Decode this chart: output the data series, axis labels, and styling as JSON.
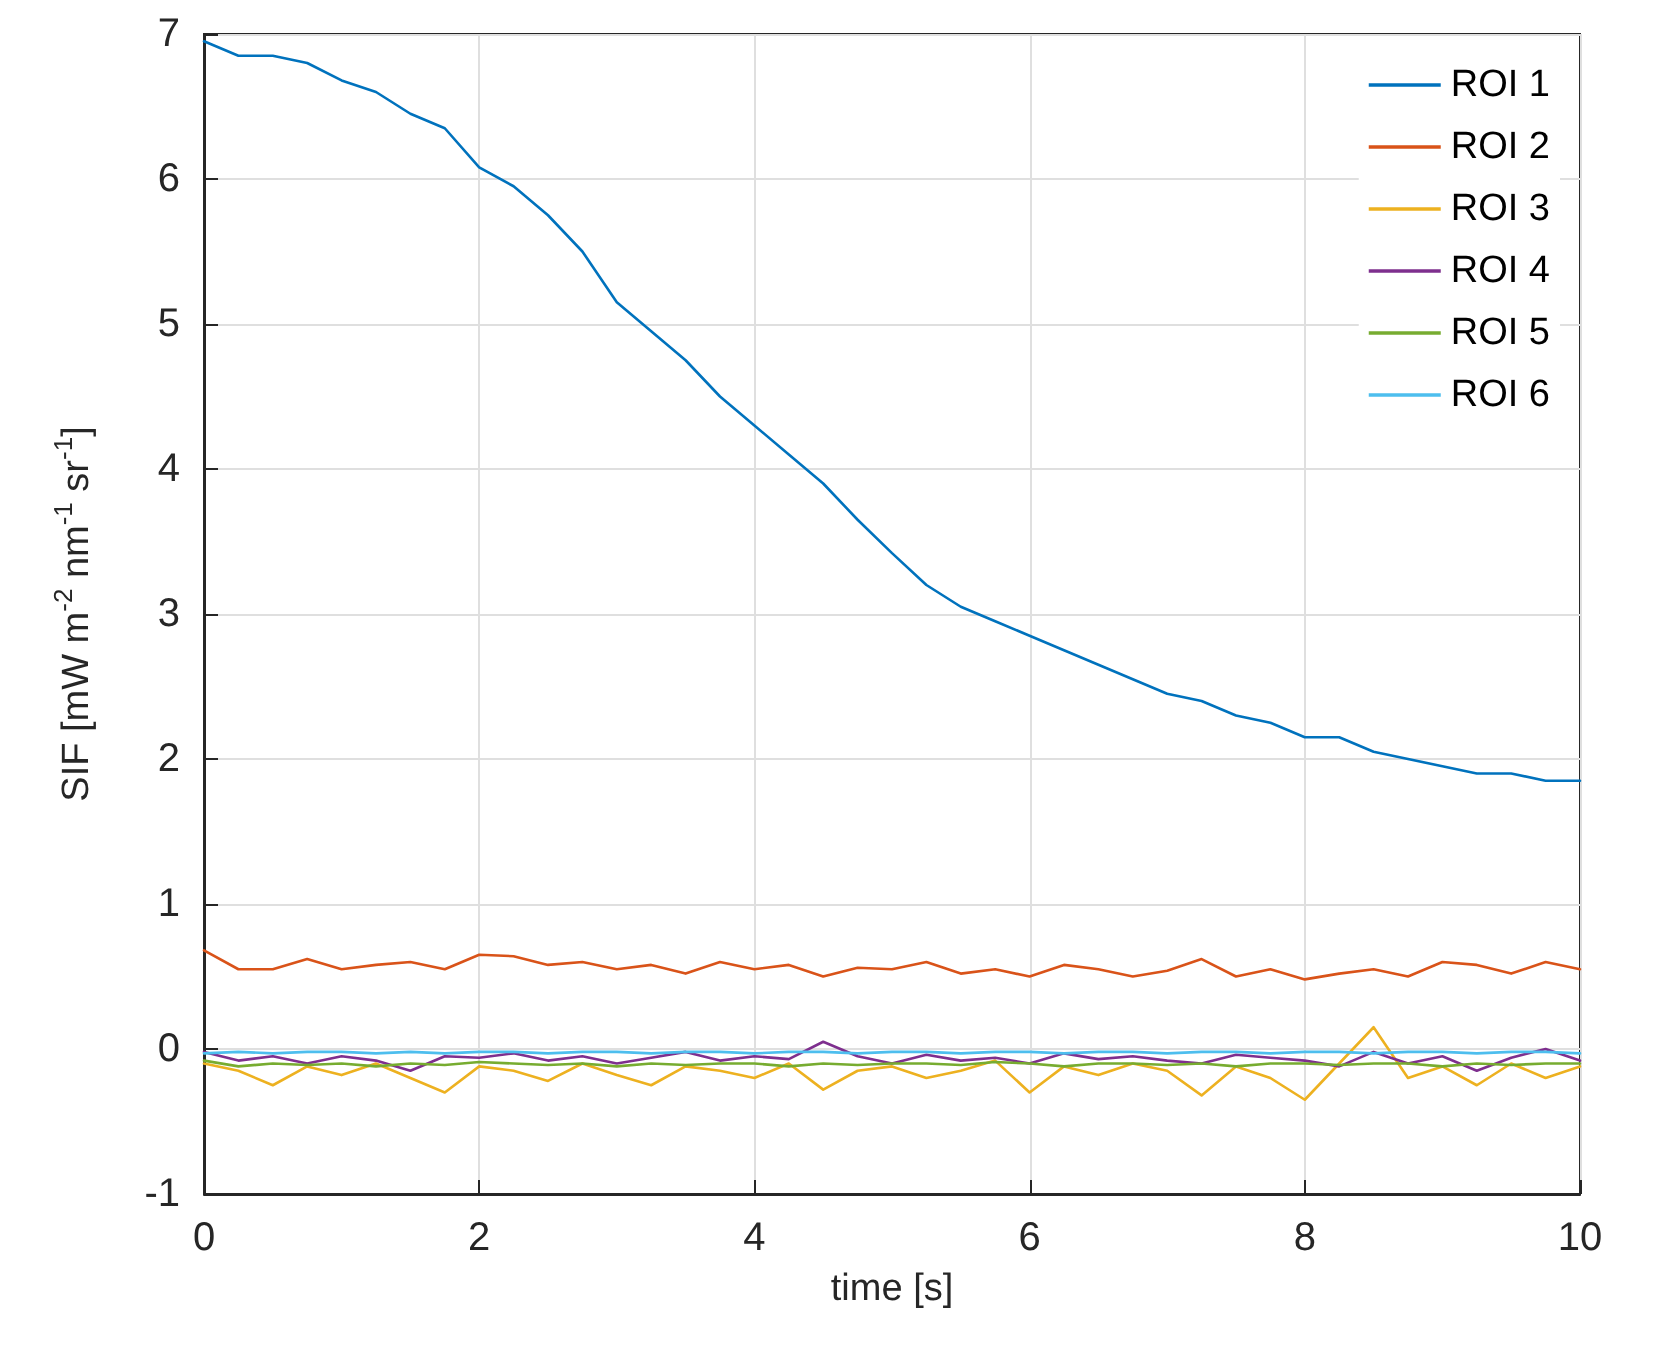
{
  "chart_data": {
    "type": "line",
    "xlabel": "time [s]",
    "ylabel": "SIF [mW m$^{-2}$ nm$^{-1}$ sr$^{-1}$]",
    "x": [
      0,
      0.25,
      0.5,
      0.75,
      1,
      1.25,
      1.5,
      1.75,
      2,
      2.25,
      2.5,
      2.75,
      3,
      3.25,
      3.5,
      3.75,
      4,
      4.25,
      4.5,
      4.75,
      5,
      5.25,
      5.5,
      5.75,
      6,
      6.25,
      6.5,
      6.75,
      7,
      7.25,
      7.5,
      7.75,
      8,
      8.25,
      8.5,
      8.75,
      9,
      9.25,
      9.5,
      9.75,
      10
    ],
    "xlim": [
      0,
      10
    ],
    "xticks": [
      0,
      2,
      4,
      6,
      8,
      10
    ],
    "ylim": [
      -1,
      7
    ],
    "yticks": [
      -1,
      0,
      1,
      2,
      3,
      4,
      5,
      6,
      7
    ],
    "grid": true,
    "legend": "top right",
    "line_style": "solid",
    "marker": "none",
    "series": [
      {
        "name": "ROI 1",
        "color": "#0072bd",
        "values": [
          6.95,
          6.85,
          6.85,
          6.8,
          6.68,
          6.6,
          6.45,
          6.35,
          6.08,
          5.95,
          5.75,
          5.5,
          5.15,
          4.95,
          4.75,
          4.5,
          4.3,
          4.1,
          3.9,
          3.65,
          3.42,
          3.2,
          3.05,
          2.95,
          2.85,
          2.75,
          2.65,
          2.55,
          2.45,
          2.4,
          2.3,
          2.25,
          2.15,
          2.15,
          2.05,
          2.0,
          1.95,
          1.9,
          1.9,
          1.85,
          1.85
        ]
      },
      {
        "name": "ROI 2",
        "color": "#d95319",
        "values": [
          0.68,
          0.55,
          0.55,
          0.62,
          0.55,
          0.58,
          0.6,
          0.55,
          0.65,
          0.64,
          0.58,
          0.6,
          0.55,
          0.58,
          0.52,
          0.6,
          0.55,
          0.58,
          0.5,
          0.56,
          0.55,
          0.6,
          0.52,
          0.55,
          0.5,
          0.58,
          0.55,
          0.5,
          0.54,
          0.62,
          0.5,
          0.55,
          0.48,
          0.52,
          0.55,
          0.5,
          0.6,
          0.58,
          0.52,
          0.6,
          0.55
        ]
      },
      {
        "name": "ROI 3",
        "color": "#edb120",
        "values": [
          -0.1,
          -0.15,
          -0.25,
          -0.12,
          -0.18,
          -0.1,
          -0.2,
          -0.3,
          -0.12,
          -0.15,
          -0.22,
          -0.1,
          -0.18,
          -0.25,
          -0.12,
          -0.15,
          -0.2,
          -0.1,
          -0.28,
          -0.15,
          -0.12,
          -0.2,
          -0.15,
          -0.08,
          -0.3,
          -0.12,
          -0.18,
          -0.1,
          -0.15,
          -0.32,
          -0.12,
          -0.2,
          -0.35,
          -0.1,
          0.15,
          -0.2,
          -0.12,
          -0.25,
          -0.1,
          -0.2,
          -0.12
        ]
      },
      {
        "name": "ROI 4",
        "color": "#7e2f8e",
        "values": [
          -0.02,
          -0.08,
          -0.05,
          -0.1,
          -0.05,
          -0.08,
          -0.15,
          -0.05,
          -0.06,
          -0.03,
          -0.08,
          -0.05,
          -0.1,
          -0.06,
          -0.02,
          -0.08,
          -0.05,
          -0.07,
          0.05,
          -0.05,
          -0.1,
          -0.04,
          -0.08,
          -0.06,
          -0.1,
          -0.03,
          -0.07,
          -0.05,
          -0.08,
          -0.1,
          -0.04,
          -0.06,
          -0.08,
          -0.12,
          -0.02,
          -0.1,
          -0.05,
          -0.15,
          -0.06,
          0.0,
          -0.08
        ]
      },
      {
        "name": "ROI 5",
        "color": "#77ac30",
        "values": [
          -0.08,
          -0.12,
          -0.1,
          -0.11,
          -0.1,
          -0.12,
          -0.1,
          -0.11,
          -0.09,
          -0.1,
          -0.11,
          -0.1,
          -0.12,
          -0.1,
          -0.11,
          -0.1,
          -0.1,
          -0.12,
          -0.1,
          -0.11,
          -0.1,
          -0.1,
          -0.11,
          -0.09,
          -0.1,
          -0.12,
          -0.1,
          -0.1,
          -0.11,
          -0.1,
          -0.12,
          -0.1,
          -0.1,
          -0.11,
          -0.1,
          -0.1,
          -0.12,
          -0.1,
          -0.11,
          -0.1,
          -0.1
        ]
      },
      {
        "name": "ROI 6",
        "color": "#4dbeee",
        "values": [
          -0.03,
          -0.02,
          -0.03,
          -0.02,
          -0.02,
          -0.03,
          -0.02,
          -0.03,
          -0.02,
          -0.02,
          -0.03,
          -0.02,
          -0.02,
          -0.03,
          -0.02,
          -0.02,
          -0.03,
          -0.02,
          -0.02,
          -0.03,
          -0.02,
          -0.02,
          -0.03,
          -0.02,
          -0.02,
          -0.03,
          -0.02,
          -0.02,
          -0.03,
          -0.02,
          -0.02,
          -0.03,
          -0.02,
          -0.02,
          -0.03,
          -0.02,
          -0.02,
          -0.03,
          -0.02,
          -0.02,
          -0.03
        ]
      }
    ]
  }
}
